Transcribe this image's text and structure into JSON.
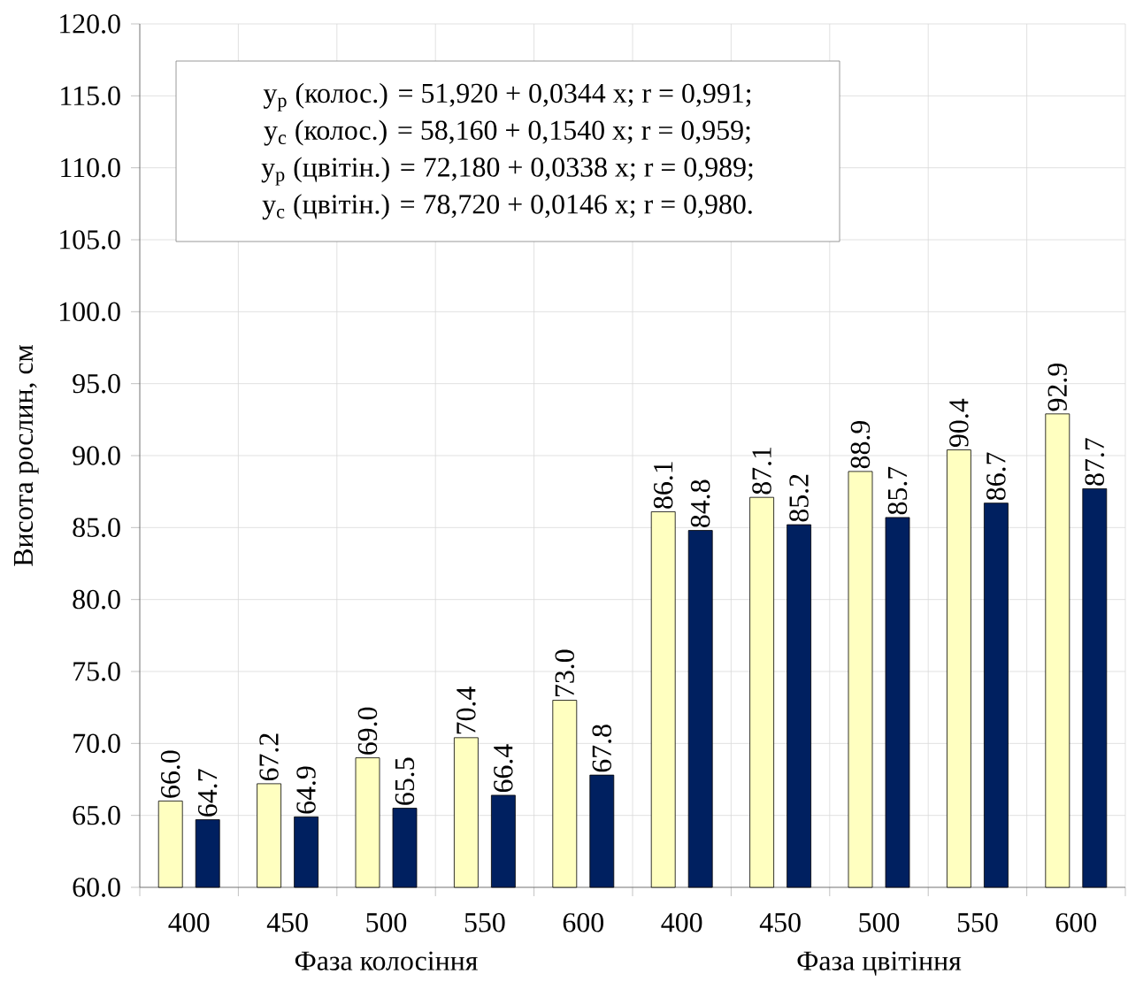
{
  "chart_data": {
    "type": "bar",
    "categories": [
      "400",
      "450",
      "500",
      "550",
      "600",
      "400",
      "450",
      "500",
      "550",
      "600"
    ],
    "ylabel": "Висота рослин, см",
    "ylim": [
      60,
      120
    ],
    "yticks": [
      {
        "value": 60,
        "label": "60.0"
      },
      {
        "value": 65,
        "label": "65.0"
      },
      {
        "value": 70,
        "label": "70.0"
      },
      {
        "value": 75,
        "label": "75.0"
      },
      {
        "value": 80,
        "label": "80.0"
      },
      {
        "value": 85,
        "label": "85.0"
      },
      {
        "value": 90,
        "label": "90.0"
      },
      {
        "value": 95,
        "label": "95.0"
      },
      {
        "value": 100,
        "label": "100.0"
      },
      {
        "value": 105,
        "label": "105.0"
      },
      {
        "value": 110,
        "label": "110.0"
      },
      {
        "value": 115,
        "label": "115.0"
      },
      {
        "value": 120,
        "label": "120.0"
      }
    ],
    "grid": true,
    "series": [
      {
        "color": "#ffffc0",
        "values": [
          66.0,
          67.2,
          69.0,
          70.4,
          73.0,
          86.1,
          87.1,
          88.9,
          90.4,
          92.9
        ],
        "value_labels": [
          "66.0",
          "67.2",
          "69.0",
          "70.4",
          "73.0",
          "86.1",
          "87.1",
          "88.9",
          "90.4",
          "92.9"
        ]
      },
      {
        "color": "#002060",
        "values": [
          64.7,
          64.9,
          65.5,
          66.4,
          67.8,
          84.8,
          85.2,
          85.7,
          86.7,
          87.7
        ],
        "value_labels": [
          "64.7",
          "64.9",
          "65.5",
          "66.4",
          "67.8",
          "84.8",
          "85.2",
          "85.7",
          "86.7",
          "87.7"
        ]
      }
    ],
    "annotations": [
      "Фаза колосіння",
      "Фаза цвітіння",
      "y$_{р}$ (колос.) = 51,920 + 0,0344 x;  r = 0,991;",
      "y$_{с}$ (колос.) = 58,160 + 0,1540 x;  r = 0,959;",
      "y$_{р}$ (цвітін.) = 72,180 + 0,0338 x;  r = 0,989;",
      "y$_{с}$ (цвітін.) = 78,720 + 0,0146 x;  r = 0,980."
    ]
  }
}
